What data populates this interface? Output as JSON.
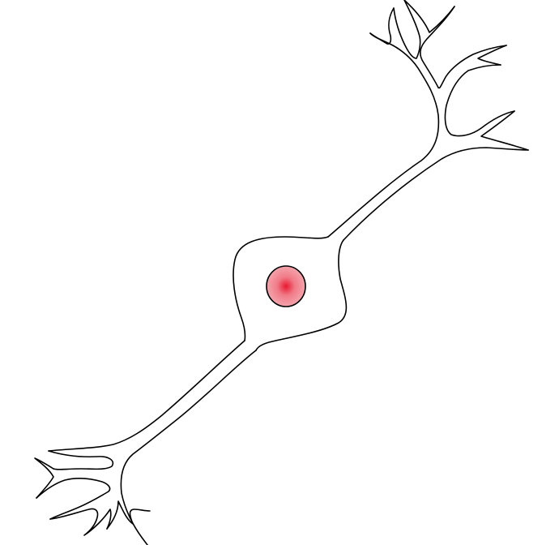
{
  "diagram": {
    "subject": "neuron",
    "parts": [
      "upper-dendrites",
      "cell-body",
      "nucleus",
      "lower-dendrites"
    ],
    "colors": {
      "background": "#ffffff",
      "outline": "#000000",
      "nucleus_center": "#e8182f",
      "nucleus_mid": "#f07a87",
      "nucleus_edge": "#f4a5ad"
    }
  }
}
